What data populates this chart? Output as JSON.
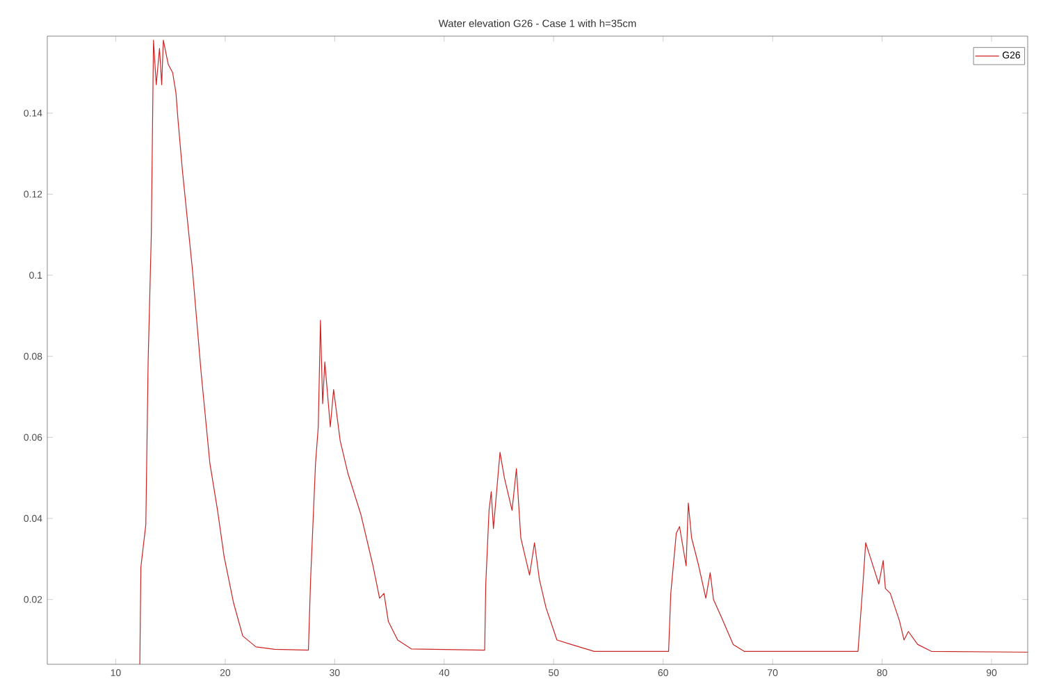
{
  "chart_data": {
    "type": "line",
    "title": "Water elevation G26 - Case 1 with h=35cm",
    "xlim": [
      3.75,
      93.3
    ],
    "ylim": [
      0.004,
      0.159
    ],
    "xticks": [
      10,
      20,
      30,
      40,
      50,
      60,
      70,
      80,
      90
    ],
    "yticks": [
      0.02,
      0.04,
      0.06,
      0.08,
      0.1,
      0.12,
      0.14
    ],
    "grid": false,
    "legend": "top right",
    "marker": "none",
    "line_style": "solid",
    "series": [
      {
        "name": "G26",
        "color": "#cc2222",
        "x": [
          12.2,
          12.3,
          12.75,
          12.96,
          13.25,
          13.45,
          13.7,
          14.0,
          14.2,
          14.35,
          14.8,
          15.2,
          15.5,
          15.7,
          16.1,
          17.0,
          17.8,
          18.6,
          19.3,
          19.9,
          20.75,
          21.6,
          22.8,
          24.5,
          27.6,
          27.8,
          28.25,
          28.5,
          28.7,
          28.9,
          29.1,
          29.6,
          29.9,
          30.5,
          31.2,
          32.4,
          33.5,
          34.1,
          34.5,
          34.9,
          35.75,
          37.0,
          43.7,
          43.8,
          44.1,
          44.3,
          44.5,
          45.1,
          45.5,
          46.2,
          46.6,
          47.0,
          47.8,
          48.25,
          48.7,
          49.3,
          50.3,
          51.6,
          53.7,
          60.5,
          60.7,
          61.2,
          61.5,
          62.1,
          62.3,
          62.6,
          63.25,
          63.9,
          64.3,
          64.6,
          65.3,
          66.4,
          67.4,
          77.8,
          78.25,
          78.5,
          78.9,
          79.7,
          80.1,
          80.3,
          80.75,
          81.6,
          82.0,
          82.4,
          83.25,
          84.5,
          93.3
        ],
        "values": [
          0.004,
          0.028,
          0.0385,
          0.0786,
          0.11,
          0.158,
          0.147,
          0.156,
          0.147,
          0.158,
          0.152,
          0.15,
          0.145,
          0.138,
          0.1256,
          0.1016,
          0.076,
          0.0536,
          0.042,
          0.0306,
          0.0193,
          0.011,
          0.0083,
          0.0077,
          0.0075,
          0.0249,
          0.0536,
          0.0626,
          0.0889,
          0.0683,
          0.0786,
          0.0626,
          0.0718,
          0.0592,
          0.0512,
          0.0409,
          0.0283,
          0.0203,
          0.0215,
          0.0146,
          0.01,
          0.0078,
          0.0075,
          0.0238,
          0.042,
          0.0466,
          0.0375,
          0.0563,
          0.05,
          0.042,
          0.0523,
          0.0352,
          0.026,
          0.034,
          0.0249,
          0.018,
          0.01,
          0.0089,
          0.0072,
          0.0072,
          0.0215,
          0.0363,
          0.038,
          0.0283,
          0.0438,
          0.0352,
          0.0283,
          0.0203,
          0.0266,
          0.02,
          0.0158,
          0.0089,
          0.0072,
          0.0072,
          0.0238,
          0.034,
          0.0306,
          0.0238,
          0.0296,
          0.0227,
          0.0215,
          0.0146,
          0.01,
          0.0121,
          0.0089,
          0.0072,
          0.007
        ]
      }
    ]
  }
}
